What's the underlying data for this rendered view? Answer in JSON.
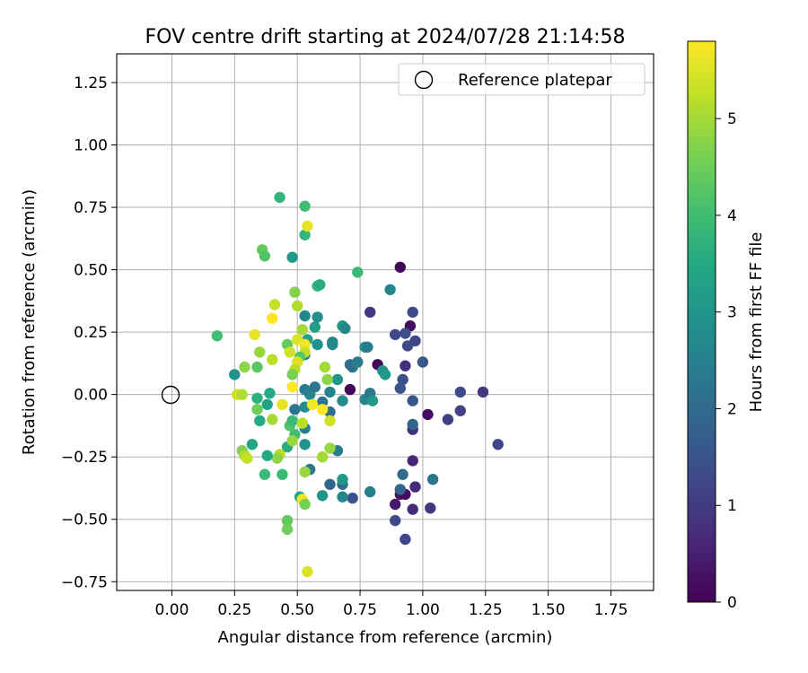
{
  "chart_data": {
    "type": "scatter",
    "title": "FOV centre drift starting at 2024/07/28 21:14:58",
    "xlabel": "Angular distance from reference (arcmin)",
    "ylabel": "Rotation from reference (arcmin)",
    "xlim": [
      -0.22,
      1.92
    ],
    "ylim": [
      -0.785,
      1.365
    ],
    "xticks": [
      "0.00",
      "0.25",
      "0.50",
      "0.75",
      "1.00",
      "1.25",
      "1.50",
      "1.75"
    ],
    "xtick_values": [
      0,
      0.25,
      0.5,
      0.75,
      1.0,
      1.25,
      1.5,
      1.75
    ],
    "yticks": [
      "−0.75",
      "−0.50",
      "−0.25",
      "0.00",
      "0.25",
      "0.50",
      "0.75",
      "1.00",
      "1.25"
    ],
    "ytick_values": [
      -0.75,
      -0.5,
      -0.25,
      0,
      0.25,
      0.5,
      0.75,
      1.0,
      1.25
    ],
    "grid": true,
    "legend": {
      "placement": "top-right",
      "entries": [
        "Reference platepar"
      ]
    },
    "reference_point": {
      "x": 0.0,
      "y": 0.0
    },
    "colorbar": {
      "label": "Hours from first FF file",
      "range": [
        0,
        5.8
      ],
      "ticks": [
        "0",
        "1",
        "2",
        "3",
        "4",
        "5"
      ],
      "tick_values": [
        0,
        1,
        2,
        3,
        4,
        5
      ],
      "colormap": "viridis"
    },
    "points": [
      {
        "x": 0.91,
        "y": 0.51,
        "c": 0.1
      },
      {
        "x": 0.95,
        "y": 0.275,
        "c": 0.2
      },
      {
        "x": 0.82,
        "y": 0.12,
        "c": 0.1
      },
      {
        "x": 0.71,
        "y": 0.02,
        "c": 0.1
      },
      {
        "x": 1.02,
        "y": -0.08,
        "c": 0.2
      },
      {
        "x": 0.89,
        "y": -0.44,
        "c": 0.4
      },
      {
        "x": 0.91,
        "y": -0.4,
        "c": 0.3
      },
      {
        "x": 0.96,
        "y": -0.265,
        "c": 0.6
      },
      {
        "x": 0.93,
        "y": -0.4,
        "c": 0.2
      },
      {
        "x": 0.97,
        "y": -0.37,
        "c": 0.7
      },
      {
        "x": 0.96,
        "y": -0.46,
        "c": 0.7
      },
      {
        "x": 1.03,
        "y": -0.455,
        "c": 0.9
      },
      {
        "x": 0.96,
        "y": -0.14,
        "c": 0.8
      },
      {
        "x": 0.93,
        "y": -0.58,
        "c": 1.2
      },
      {
        "x": 0.89,
        "y": -0.505,
        "c": 1.3
      },
      {
        "x": 0.93,
        "y": 0.115,
        "c": 0.8
      },
      {
        "x": 1.24,
        "y": 0.01,
        "c": 0.9
      },
      {
        "x": 1.15,
        "y": 0.01,
        "c": 1.3
      },
      {
        "x": 1.1,
        "y": -0.1,
        "c": 1.1
      },
      {
        "x": 1.15,
        "y": -0.065,
        "c": 1.1
      },
      {
        "x": 1.3,
        "y": -0.2,
        "c": 1.2
      },
      {
        "x": 0.79,
        "y": 0.33,
        "c": 0.9
      },
      {
        "x": 0.96,
        "y": 0.33,
        "c": 1.3
      },
      {
        "x": 0.89,
        "y": 0.24,
        "c": 1.3
      },
      {
        "x": 0.93,
        "y": 0.245,
        "c": 1.4
      },
      {
        "x": 0.97,
        "y": 0.215,
        "c": 1.2
      },
      {
        "x": 0.94,
        "y": 0.195,
        "c": 1.3
      },
      {
        "x": 1.0,
        "y": 0.13,
        "c": 1.6
      },
      {
        "x": 0.92,
        "y": 0.06,
        "c": 1.4
      },
      {
        "x": 0.91,
        "y": 0.025,
        "c": 1.5
      },
      {
        "x": 0.96,
        "y": -0.025,
        "c": 1.6
      },
      {
        "x": 0.96,
        "y": -0.12,
        "c": 1.9
      },
      {
        "x": 0.72,
        "y": -0.415,
        "c": 1.5
      },
      {
        "x": 0.63,
        "y": -0.36,
        "c": 1.9
      },
      {
        "x": 0.92,
        "y": -0.32,
        "c": 2.0
      },
      {
        "x": 1.04,
        "y": -0.34,
        "c": 2.2
      },
      {
        "x": 0.91,
        "y": -0.38,
        "c": 1.9
      },
      {
        "x": 0.68,
        "y": -0.36,
        "c": 2.1
      },
      {
        "x": 0.79,
        "y": -0.39,
        "c": 2.5
      },
      {
        "x": 0.68,
        "y": -0.41,
        "c": 2.7
      },
      {
        "x": 0.6,
        "y": -0.405,
        "c": 3.0
      },
      {
        "x": 0.68,
        "y": -0.34,
        "c": 3.1
      },
      {
        "x": 0.55,
        "y": -0.3,
        "c": 2.3
      },
      {
        "x": 0.66,
        "y": -0.225,
        "c": 2.4
      },
      {
        "x": 0.53,
        "y": -0.2,
        "c": 2.9
      },
      {
        "x": 0.53,
        "y": -0.135,
        "c": 2.5
      },
      {
        "x": 0.53,
        "y": -0.05,
        "c": 2.8
      },
      {
        "x": 0.49,
        "y": -0.06,
        "c": 2.3
      },
      {
        "x": 0.55,
        "y": 0.0,
        "c": 2.7
      },
      {
        "x": 0.53,
        "y": 0.02,
        "c": 2.4
      },
      {
        "x": 0.6,
        "y": -0.03,
        "c": 2.2
      },
      {
        "x": 0.63,
        "y": -0.07,
        "c": 2.1
      },
      {
        "x": 0.57,
        "y": 0.03,
        "c": 2.3
      },
      {
        "x": 0.63,
        "y": 0.01,
        "c": 2.6
      },
      {
        "x": 0.66,
        "y": 0.06,
        "c": 3.0
      },
      {
        "x": 0.68,
        "y": -0.025,
        "c": 2.8
      },
      {
        "x": 0.72,
        "y": 0.11,
        "c": 2.3
      },
      {
        "x": 0.71,
        "y": 0.12,
        "c": 2.1
      },
      {
        "x": 0.74,
        "y": 0.13,
        "c": 2.4
      },
      {
        "x": 0.77,
        "y": -0.02,
        "c": 2.6
      },
      {
        "x": 0.79,
        "y": 0.005,
        "c": 2.3
      },
      {
        "x": 0.8,
        "y": -0.025,
        "c": 3.1
      },
      {
        "x": 0.84,
        "y": 0.095,
        "c": 3.0
      },
      {
        "x": 0.85,
        "y": 0.08,
        "c": 3.1
      },
      {
        "x": 0.87,
        "y": 0.42,
        "c": 2.6
      },
      {
        "x": 0.77,
        "y": 0.19,
        "c": 2.9
      },
      {
        "x": 0.78,
        "y": 0.19,
        "c": 2.4
      },
      {
        "x": 0.68,
        "y": 0.275,
        "c": 3.1
      },
      {
        "x": 0.69,
        "y": 0.265,
        "c": 2.7
      },
      {
        "x": 0.64,
        "y": 0.21,
        "c": 2.5
      },
      {
        "x": 0.64,
        "y": 0.2,
        "c": 2.7
      },
      {
        "x": 0.58,
        "y": 0.2,
        "c": 2.9
      },
      {
        "x": 0.57,
        "y": 0.27,
        "c": 3.2
      },
      {
        "x": 0.58,
        "y": 0.31,
        "c": 2.8
      },
      {
        "x": 0.53,
        "y": 0.315,
        "c": 2.7
      },
      {
        "x": 0.54,
        "y": 0.22,
        "c": 3.3
      },
      {
        "x": 0.53,
        "y": 0.16,
        "c": 2.4
      },
      {
        "x": 0.48,
        "y": 0.55,
        "c": 3.1
      },
      {
        "x": 0.74,
        "y": 0.49,
        "c": 3.9
      },
      {
        "x": 0.58,
        "y": 0.435,
        "c": 3.8
      },
      {
        "x": 0.59,
        "y": 0.44,
        "c": 3.6
      },
      {
        "x": 0.43,
        "y": 0.79,
        "c": 3.8
      },
      {
        "x": 0.53,
        "y": 0.755,
        "c": 4.0
      },
      {
        "x": 0.53,
        "y": 0.64,
        "c": 3.8
      },
      {
        "x": 0.36,
        "y": 0.58,
        "c": 4.4
      },
      {
        "x": 0.37,
        "y": 0.555,
        "c": 4.2
      },
      {
        "x": 0.18,
        "y": 0.235,
        "c": 4.0
      },
      {
        "x": 0.25,
        "y": 0.08,
        "c": 3.0
      },
      {
        "x": 0.29,
        "y": 0.11,
        "c": 4.8
      },
      {
        "x": 0.34,
        "y": 0.11,
        "c": 4.3
      },
      {
        "x": 0.39,
        "y": 0.005,
        "c": 3.5
      },
      {
        "x": 0.38,
        "y": -0.04,
        "c": 3.3
      },
      {
        "x": 0.34,
        "y": -0.015,
        "c": 3.7
      },
      {
        "x": 0.34,
        "y": -0.06,
        "c": 4.5
      },
      {
        "x": 0.35,
        "y": -0.105,
        "c": 3.5
      },
      {
        "x": 0.4,
        "y": -0.1,
        "c": 5.0
      },
      {
        "x": 0.47,
        "y": -0.125,
        "c": 4.2
      },
      {
        "x": 0.48,
        "y": -0.105,
        "c": 3.9
      },
      {
        "x": 0.52,
        "y": -0.115,
        "c": 5.2
      },
      {
        "x": 0.49,
        "y": -0.16,
        "c": 4.0
      },
      {
        "x": 0.46,
        "y": -0.21,
        "c": 3.6
      },
      {
        "x": 0.48,
        "y": -0.185,
        "c": 4.9
      },
      {
        "x": 0.43,
        "y": -0.24,
        "c": 5.2
      },
      {
        "x": 0.42,
        "y": -0.255,
        "c": 4.8
      },
      {
        "x": 0.38,
        "y": -0.245,
        "c": 3.5
      },
      {
        "x": 0.32,
        "y": -0.2,
        "c": 3.4
      },
      {
        "x": 0.28,
        "y": -0.225,
        "c": 4.7
      },
      {
        "x": 0.29,
        "y": -0.245,
        "c": 5.1
      },
      {
        "x": 0.3,
        "y": -0.255,
        "c": 5.3
      },
      {
        "x": 0.37,
        "y": -0.32,
        "c": 3.9
      },
      {
        "x": 0.44,
        "y": -0.32,
        "c": 3.9
      },
      {
        "x": 0.53,
        "y": -0.31,
        "c": 4.9
      },
      {
        "x": 0.51,
        "y": -0.41,
        "c": 3.5
      },
      {
        "x": 0.52,
        "y": -0.42,
        "c": 5.7
      },
      {
        "x": 0.53,
        "y": -0.44,
        "c": 4.6
      },
      {
        "x": 0.46,
        "y": -0.505,
        "c": 4.4
      },
      {
        "x": 0.46,
        "y": -0.54,
        "c": 4.5
      },
      {
        "x": 0.54,
        "y": -0.71,
        "c": 5.5
      },
      {
        "x": 0.6,
        "y": -0.25,
        "c": 5.0
      },
      {
        "x": 0.63,
        "y": -0.215,
        "c": 4.9
      },
      {
        "x": 0.63,
        "y": -0.105,
        "c": 5.4
      },
      {
        "x": 0.6,
        "y": -0.06,
        "c": 5.8
      },
      {
        "x": 0.56,
        "y": -0.04,
        "c": 5.7
      },
      {
        "x": 0.44,
        "y": -0.04,
        "c": 5.6
      },
      {
        "x": 0.26,
        "y": 0.0,
        "c": 5.4
      },
      {
        "x": 0.28,
        "y": 0.0,
        "c": 5.1
      },
      {
        "x": 0.33,
        "y": 0.24,
        "c": 5.6
      },
      {
        "x": 0.35,
        "y": 0.17,
        "c": 4.9
      },
      {
        "x": 0.4,
        "y": 0.14,
        "c": 5.2
      },
      {
        "x": 0.4,
        "y": 0.305,
        "c": 5.8
      },
      {
        "x": 0.41,
        "y": 0.36,
        "c": 5.3
      },
      {
        "x": 0.5,
        "y": 0.355,
        "c": 5.1
      },
      {
        "x": 0.49,
        "y": 0.41,
        "c": 4.7
      },
      {
        "x": 0.54,
        "y": 0.675,
        "c": 5.6
      },
      {
        "x": 0.46,
        "y": 0.2,
        "c": 4.4
      },
      {
        "x": 0.47,
        "y": 0.17,
        "c": 5.4
      },
      {
        "x": 0.5,
        "y": 0.22,
        "c": 5.5
      },
      {
        "x": 0.52,
        "y": 0.26,
        "c": 5.0
      },
      {
        "x": 0.53,
        "y": 0.2,
        "c": 5.7
      },
      {
        "x": 0.53,
        "y": 0.17,
        "c": 5.3
      },
      {
        "x": 0.51,
        "y": 0.15,
        "c": 4.3
      },
      {
        "x": 0.5,
        "y": 0.13,
        "c": 5.5
      },
      {
        "x": 0.49,
        "y": 0.1,
        "c": 5.2
      },
      {
        "x": 0.48,
        "y": 0.08,
        "c": 4.6
      },
      {
        "x": 0.48,
        "y": 0.03,
        "c": 5.9
      },
      {
        "x": 0.61,
        "y": 0.11,
        "c": 5.0
      },
      {
        "x": 0.62,
        "y": 0.06,
        "c": 4.8
      }
    ]
  }
}
